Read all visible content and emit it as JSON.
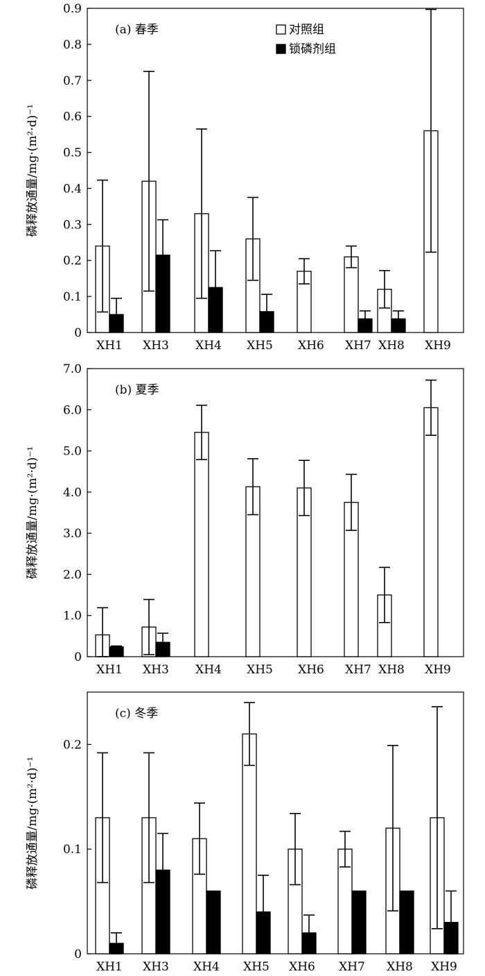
{
  "chart_data": [
    {
      "type": "bar",
      "title": "(a) 春季",
      "ylabel": "磷释放通量/mg·(m²·d)⁻¹",
      "ylim": [
        0,
        0.9
      ],
      "yticks": [
        0,
        0.1,
        0.2,
        0.3,
        0.4,
        0.5,
        0.6,
        0.7,
        0.8,
        0.9
      ],
      "ytick_labels": [
        "0",
        "0.1",
        "0.2",
        "0.3",
        "0.4",
        "0.5",
        "0.6",
        "0.7",
        "0.8",
        "0.9"
      ],
      "categories": [
        "XH1",
        "XH3",
        "XH4",
        "XH5",
        "XH6",
        "XH7",
        "XH8",
        "XH9"
      ],
      "legend": {
        "placement": "top-center"
      },
      "series": [
        {
          "name": "对照组",
          "color": "#ffffff",
          "values": [
            0.24,
            0.42,
            0.33,
            0.26,
            0.17,
            0.21,
            0.12,
            0.56
          ],
          "errors": [
            0.183,
            0.305,
            0.235,
            0.115,
            0.035,
            0.03,
            0.052,
            0.337
          ]
        },
        {
          "name": "锁磷剂组",
          "color": "#000000",
          "values": [
            0.05,
            0.215,
            0.125,
            0.058,
            null,
            0.038,
            0.038,
            null
          ],
          "errors": [
            0.045,
            0.098,
            0.102,
            0.048,
            null,
            0.022,
            0.022,
            null
          ]
        }
      ]
    },
    {
      "type": "bar",
      "title": "(b) 夏季",
      "ylabel": "磷释放通量/mg·(m²·d)⁻¹",
      "ylim": [
        0,
        7.0
      ],
      "yticks": [
        0,
        1,
        2,
        3,
        4,
        5,
        6,
        7
      ],
      "ytick_labels": [
        "0",
        "1.0",
        "2.0",
        "3.0",
        "4.0",
        "5.0",
        "6.0",
        "7.0"
      ],
      "categories": [
        "XH1",
        "XH3",
        "XH4",
        "XH5",
        "XH6",
        "XH7",
        "XH8",
        "XH9"
      ],
      "series": [
        {
          "name": "对照组",
          "color": "#ffffff",
          "values": [
            0.53,
            0.72,
            5.45,
            4.13,
            4.1,
            3.75,
            1.5,
            6.05
          ],
          "errors": [
            0.66,
            0.67,
            0.66,
            0.68,
            0.67,
            0.68,
            0.67,
            0.67
          ]
        },
        {
          "name": "锁磷剂组",
          "color": "#000000",
          "values": [
            0.24,
            0.35,
            null,
            null,
            null,
            null,
            null,
            null
          ],
          "errors": [
            0.02,
            0.22,
            null,
            null,
            null,
            null,
            null,
            null
          ]
        }
      ]
    },
    {
      "type": "bar",
      "title": "(c) 冬季",
      "ylabel": "磷释放通量/mg·(m²·d)⁻¹",
      "ylim": [
        0,
        0.25
      ],
      "yticks": [
        0,
        0.1,
        0.2
      ],
      "ytick_labels": [
        "0",
        "0.1",
        "0.2"
      ],
      "categories": [
        "XH1",
        "XH3",
        "XH4",
        "XH5",
        "XH6",
        "XH7",
        "XH8",
        "XH9"
      ],
      "series": [
        {
          "name": "对照组",
          "color": "#ffffff",
          "values": [
            0.13,
            0.13,
            0.11,
            0.21,
            0.1,
            0.1,
            0.12,
            0.13
          ],
          "errors": [
            0.062,
            0.062,
            0.034,
            0.03,
            0.034,
            0.017,
            0.079,
            0.106
          ]
        },
        {
          "name": "锁磷剂组",
          "color": "#000000",
          "values": [
            0.01,
            0.08,
            0.06,
            0.04,
            0.02,
            0.06,
            0.06,
            0.03
          ],
          "errors": [
            0.01,
            0.035,
            null,
            0.035,
            0.017,
            null,
            null,
            0.03
          ]
        }
      ]
    }
  ]
}
